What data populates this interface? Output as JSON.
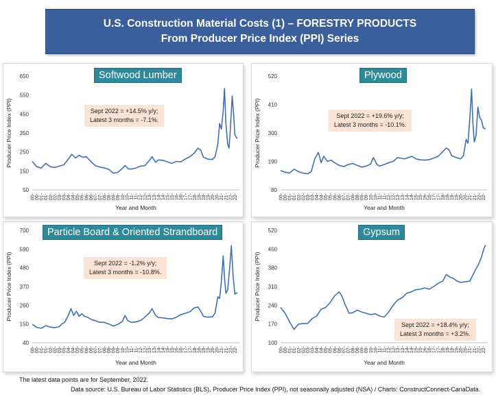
{
  "header": {
    "line1": "U.S. Construction Material Costs (1) – FORESTRY PRODUCTS",
    "line2": "From Producer Price Index (PPI) Series"
  },
  "footer": {
    "note1": "The latest data points are for September, 2022.",
    "note2": "Data source: U.S. Bureau of Labor Statistics (BLS), Producer Price Index (PPI), not seasonally adjusted (NSA) / Charts: ConstructConnect-CanaData."
  },
  "chart_data": [
    {
      "type": "line",
      "title": "Softwood Lumber",
      "xlabel": "Year and Month",
      "ylabel": "Producer Price Index (PPI)",
      "ylim": [
        50,
        650
      ],
      "yticks": [
        50,
        150,
        250,
        350,
        450,
        550,
        650
      ],
      "xticks": [
        "00-",
        "01-",
        "02-",
        "03-",
        "04-",
        "05-",
        "06-",
        "07-",
        "08-",
        "09-",
        "10-",
        "11-",
        "12-",
        "13-",
        "14-",
        "15-",
        "16-",
        "17-",
        "18-",
        "19-",
        "20-",
        "21-",
        "22-"
      ],
      "color": "#3f6fb0",
      "annotation": [
        "Sept 2022 = +14.5% y/y;",
        "Latest 3 months = -7.1%."
      ],
      "x": [
        2000.0,
        2000.5,
        2001.0,
        2001.5,
        2002.0,
        2002.5,
        2003.0,
        2003.5,
        2004.0,
        2004.4,
        2004.8,
        2005.2,
        2005.6,
        2006.0,
        2006.5,
        2007.0,
        2007.5,
        2008.0,
        2008.5,
        2009.0,
        2009.5,
        2010.0,
        2010.3,
        2010.7,
        2011.0,
        2011.5,
        2012.0,
        2012.5,
        2013.0,
        2013.3,
        2013.7,
        2014.0,
        2014.5,
        2015.0,
        2015.5,
        2016.0,
        2016.5,
        2017.0,
        2017.5,
        2018.0,
        2018.4,
        2018.7,
        2019.0,
        2019.5,
        2020.0,
        2020.3,
        2020.6,
        2020.8,
        2021.0,
        2021.2,
        2021.35,
        2021.5,
        2021.7,
        2021.85,
        2022.0,
        2022.2,
        2022.35,
        2022.5,
        2022.75
      ],
      "y": [
        200,
        172,
        165,
        190,
        172,
        168,
        175,
        182,
        212,
        238,
        218,
        232,
        222,
        225,
        200,
        178,
        170,
        166,
        158,
        138,
        142,
        163,
        178,
        160,
        160,
        165,
        175,
        178,
        205,
        225,
        195,
        208,
        206,
        198,
        190,
        200,
        198,
        213,
        225,
        245,
        270,
        260,
        222,
        212,
        210,
        225,
        290,
        400,
        370,
        470,
        585,
        400,
        290,
        270,
        380,
        545,
        450,
        340,
        320
      ]
    },
    {
      "type": "line",
      "title": "Plywood",
      "xlabel": "Year and Month",
      "ylabel": "Producer Price Index (PPI)",
      "ylim": [
        80,
        520
      ],
      "yticks": [
        80,
        190,
        300,
        410,
        520
      ],
      "xticks": [
        "00-",
        "01-",
        "02-",
        "03-",
        "04-",
        "05-",
        "06-",
        "07-",
        "08-",
        "09-",
        "10-",
        "11-",
        "12-",
        "13-",
        "14-",
        "15-",
        "16-",
        "17-",
        "18-",
        "19-",
        "20-",
        "21-",
        "22-"
      ],
      "color": "#3f6fb0",
      "annotation": [
        "Sept 2022 = +19.6% y/y;",
        "Latest 3 months = -10.1%."
      ],
      "x": [
        2000.0,
        2000.5,
        2001.0,
        2001.5,
        2002.0,
        2002.5,
        2003.0,
        2003.4,
        2003.8,
        2004.2,
        2004.5,
        2004.8,
        2005.2,
        2005.6,
        2006.0,
        2006.5,
        2007.0,
        2007.5,
        2008.0,
        2008.5,
        2009.0,
        2009.5,
        2010.0,
        2010.3,
        2010.7,
        2011.0,
        2011.5,
        2012.0,
        2012.5,
        2013.0,
        2013.4,
        2013.8,
        2014.2,
        2014.6,
        2015.0,
        2015.5,
        2016.0,
        2016.5,
        2017.0,
        2017.5,
        2018.0,
        2018.4,
        2018.7,
        2019.0,
        2019.5,
        2020.0,
        2020.3,
        2020.6,
        2020.8,
        2021.0,
        2021.2,
        2021.35,
        2021.5,
        2021.7,
        2021.9,
        2022.1,
        2022.3,
        2022.5,
        2022.75
      ],
      "y": [
        155,
        148,
        145,
        160,
        150,
        145,
        142,
        150,
        200,
        225,
        185,
        210,
        190,
        195,
        185,
        175,
        170,
        178,
        182,
        175,
        168,
        172,
        180,
        205,
        178,
        172,
        178,
        185,
        190,
        205,
        202,
        200,
        205,
        210,
        200,
        196,
        195,
        197,
        203,
        210,
        228,
        242,
        235,
        212,
        205,
        200,
        212,
        275,
        260,
        350,
        470,
        340,
        265,
        290,
        400,
        360,
        350,
        320,
        315
      ]
    },
    {
      "type": "line",
      "title": "Particle Board & Oriented Strandboard",
      "xlabel": "Year and Month",
      "ylabel": "Producer Price Index (PPI)",
      "ylim": [
        40,
        700
      ],
      "yticks": [
        40,
        150,
        260,
        370,
        480,
        590,
        700
      ],
      "xticks": [
        "00-",
        "01-",
        "02-",
        "03-",
        "04-",
        "05-",
        "06-",
        "07-",
        "08-",
        "09-",
        "10-",
        "11-",
        "12-",
        "13-",
        "14-",
        "15-",
        "16-",
        "17-",
        "18-",
        "19-",
        "20-",
        "21-",
        "22-"
      ],
      "color": "#3f6fb0",
      "annotation": [
        "Sept 2022 = -1.2% y/y;",
        "Latest 3 months = -10.8%."
      ],
      "x": [
        2000.0,
        2000.5,
        2001.0,
        2001.5,
        2002.0,
        2002.5,
        2003.0,
        2003.3,
        2003.6,
        2004.0,
        2004.3,
        2004.6,
        2004.9,
        2005.2,
        2005.5,
        2005.8,
        2006.2,
        2006.6,
        2007.0,
        2007.5,
        2008.0,
        2008.5,
        2009.0,
        2009.5,
        2010.0,
        2010.3,
        2010.6,
        2011.0,
        2011.5,
        2012.0,
        2012.5,
        2013.0,
        2013.3,
        2013.7,
        2014.0,
        2014.5,
        2015.0,
        2015.5,
        2016.0,
        2016.5,
        2017.0,
        2017.5,
        2018.0,
        2018.4,
        2018.7,
        2019.0,
        2019.5,
        2020.0,
        2020.3,
        2020.6,
        2020.8,
        2021.0,
        2021.2,
        2021.35,
        2021.5,
        2021.7,
        2021.9,
        2022.1,
        2022.3,
        2022.5,
        2022.75
      ],
      "y": [
        148,
        130,
        125,
        140,
        132,
        128,
        135,
        150,
        160,
        200,
        240,
        200,
        225,
        195,
        210,
        195,
        188,
        175,
        170,
        160,
        160,
        150,
        138,
        148,
        165,
        200,
        170,
        160,
        162,
        170,
        190,
        215,
        240,
        200,
        188,
        186,
        182,
        180,
        190,
        205,
        213,
        222,
        245,
        250,
        225,
        195,
        190,
        192,
        215,
        310,
        300,
        400,
        550,
        420,
        330,
        350,
        470,
        610,
        430,
        325,
        335
      ]
    },
    {
      "type": "line",
      "title": "Gypsum",
      "xlabel": "Year and Month",
      "ylabel": "Producer Price Index (PPI)",
      "ylim": [
        100,
        520
      ],
      "yticks": [
        100,
        170,
        240,
        310,
        380,
        450,
        520
      ],
      "xticks": [
        "00-",
        "01-",
        "02-",
        "03-",
        "04-",
        "05-",
        "06-",
        "07-",
        "08-",
        "09-",
        "10-",
        "11-",
        "12-",
        "13-",
        "14-",
        "15-",
        "16-",
        "17-",
        "18-",
        "19-",
        "20-",
        "21-",
        "22-"
      ],
      "color": "#3f6fb0",
      "annotation": [
        "Sept 2022 = +18.4% y/y;",
        "Latest 3 months = +3.2%."
      ],
      "x": [
        2000.0,
        2000.5,
        2001.0,
        2001.5,
        2002.0,
        2002.5,
        2003.0,
        2003.5,
        2004.0,
        2004.5,
        2005.0,
        2005.5,
        2006.0,
        2006.5,
        2006.8,
        2007.2,
        2007.6,
        2008.0,
        2008.5,
        2009.0,
        2009.5,
        2010.0,
        2010.5,
        2011.0,
        2011.5,
        2012.0,
        2012.5,
        2013.0,
        2013.5,
        2014.0,
        2014.5,
        2015.0,
        2015.5,
        2016.0,
        2016.5,
        2017.0,
        2017.5,
        2018.0,
        2018.4,
        2018.8,
        2019.2,
        2019.6,
        2020.0,
        2020.5,
        2021.0,
        2021.3,
        2021.6,
        2022.0,
        2022.3,
        2022.55,
        2022.75
      ],
      "y": [
        232,
        210,
        178,
        150,
        170,
        172,
        172,
        190,
        200,
        225,
        232,
        250,
        275,
        290,
        275,
        240,
        210,
        212,
        222,
        215,
        210,
        205,
        208,
        200,
        196,
        215,
        240,
        260,
        268,
        285,
        290,
        298,
        300,
        305,
        300,
        310,
        322,
        330,
        355,
        345,
        340,
        330,
        325,
        328,
        330,
        350,
        370,
        395,
        420,
        450,
        465
      ]
    }
  ]
}
